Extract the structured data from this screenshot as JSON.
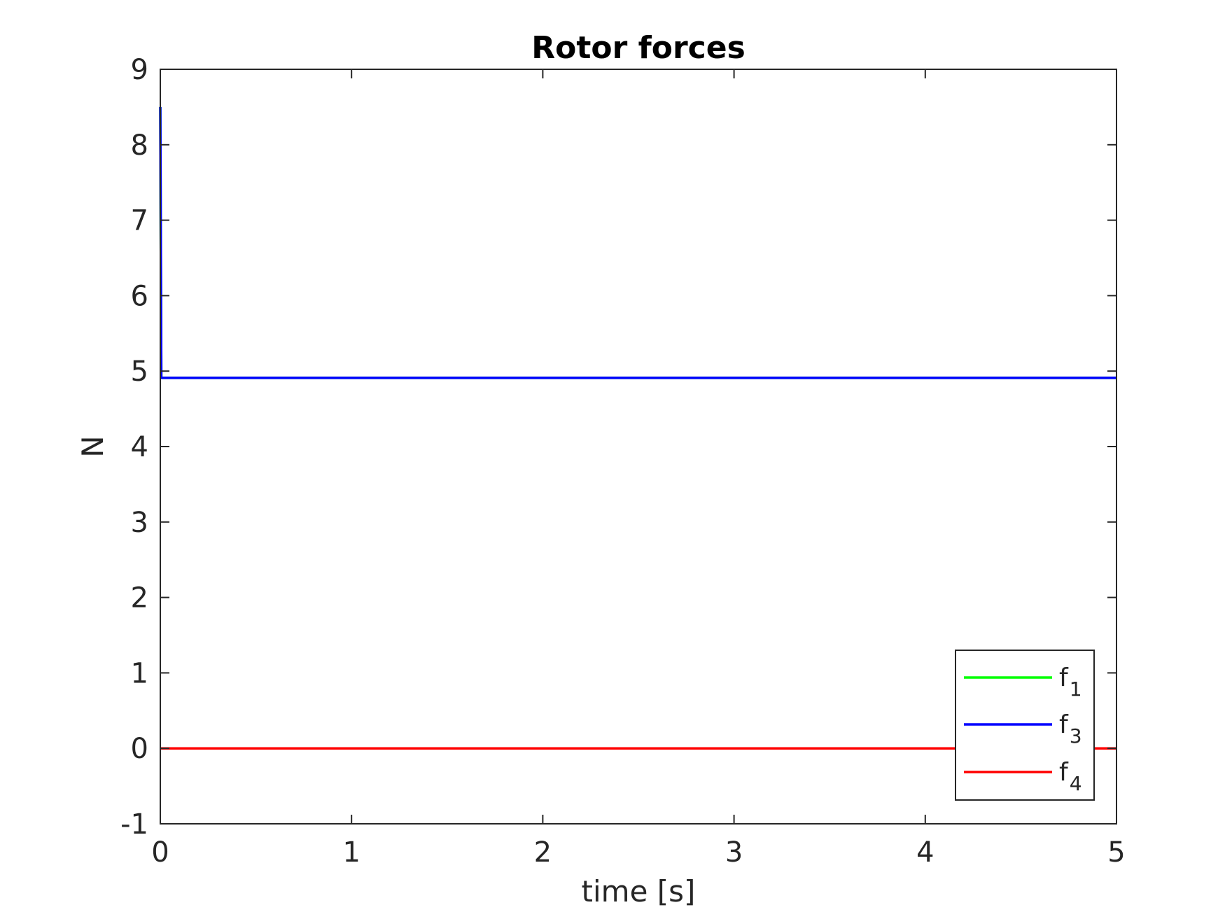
{
  "chart_data": {
    "type": "line",
    "title": "Rotor forces",
    "xlabel": "time [s]",
    "ylabel": "N",
    "xlim": [
      0,
      5
    ],
    "ylim": [
      -1,
      9
    ],
    "xticks": [
      0,
      1,
      2,
      3,
      4,
      5
    ],
    "xtick_labels": [
      "0",
      "1",
      "2",
      "3",
      "4",
      "5"
    ],
    "yticks": [
      -1,
      0,
      1,
      2,
      3,
      4,
      5,
      6,
      7,
      8,
      9
    ],
    "ytick_labels": [
      "-1",
      "0",
      "1",
      "2",
      "3",
      "4",
      "5",
      "6",
      "7",
      "8",
      "9"
    ],
    "grid": false,
    "legend_position": "bottom-right",
    "series": [
      {
        "name": "f1",
        "legend_base": "f",
        "legend_sub": "1",
        "color": "#00ff00",
        "x": [
          0,
          0.005,
          5
        ],
        "y": [
          8.5,
          4.91,
          4.91
        ]
      },
      {
        "name": "f3",
        "legend_base": "f",
        "legend_sub": "3",
        "color": "#0000ff",
        "x": [
          0,
          0.005,
          5
        ],
        "y": [
          8.5,
          4.91,
          4.91
        ]
      },
      {
        "name": "f4",
        "legend_base": "f",
        "legend_sub": "4",
        "color": "#ff0000",
        "x": [
          0,
          5
        ],
        "y": [
          0,
          0
        ]
      }
    ]
  }
}
